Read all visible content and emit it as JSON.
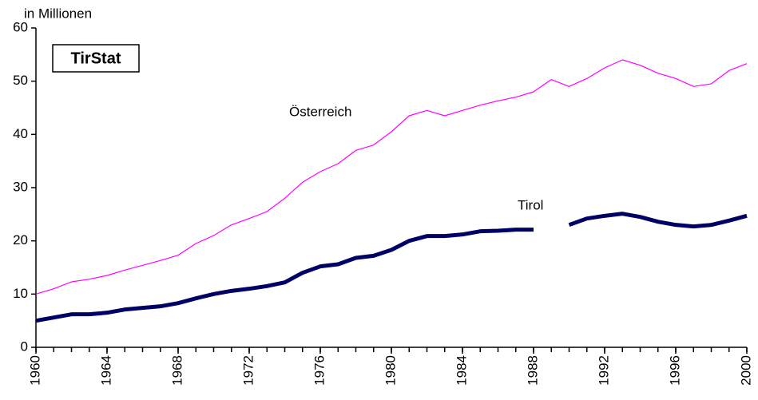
{
  "chart_data": {
    "type": "line",
    "y_unit": "in Millionen",
    "badge": "TirStat",
    "x": [
      1960,
      1961,
      1962,
      1963,
      1964,
      1965,
      1966,
      1967,
      1968,
      1969,
      1970,
      1971,
      1972,
      1973,
      1974,
      1975,
      1976,
      1977,
      1978,
      1979,
      1980,
      1981,
      1982,
      1983,
      1984,
      1985,
      1986,
      1987,
      1988,
      1989,
      1990,
      1991,
      1992,
      1993,
      1994,
      1995,
      1996,
      1997,
      1998,
      1999,
      2000
    ],
    "series": [
      {
        "name": "Österreich",
        "color": "#ff00ff",
        "width": 1.2,
        "values": [
          10,
          11,
          12.3,
          12.8,
          13.5,
          14.5,
          15.4,
          16.3,
          17.3,
          19.5,
          21,
          23,
          24.2,
          25.5,
          28,
          31,
          33,
          34.5,
          37,
          38,
          40.5,
          43.5,
          44.5,
          43.5,
          44.5,
          45.5,
          46.3,
          47,
          48,
          50.3,
          49,
          50.5,
          52.5,
          54,
          53,
          51.5,
          50.5,
          49,
          49.5,
          52,
          53.3
        ]
      },
      {
        "name": "Tirol",
        "color": "#000066",
        "width": 5,
        "values": [
          5,
          5.6,
          6.2,
          6.2,
          6.5,
          7.1,
          7.4,
          7.7,
          8.3,
          9.2,
          10,
          10.6,
          11,
          11.5,
          12.2,
          14,
          15.2,
          15.6,
          16.8,
          17.2,
          18.3,
          20,
          20.9,
          20.9,
          21.2,
          21.8,
          21.9,
          22.1,
          22.1,
          null,
          23,
          24.2,
          24.7,
          25.1,
          24.5,
          23.6,
          23,
          22.7,
          23,
          23.8,
          24.7
        ]
      }
    ],
    "xlim": [
      1960,
      2000
    ],
    "xticks": [
      1960,
      1964,
      1968,
      1972,
      1976,
      1980,
      1984,
      1988,
      1992,
      1996,
      2000
    ],
    "ylim": [
      0,
      60
    ],
    "yticks": [
      0,
      10,
      20,
      30,
      40,
      50,
      60
    ],
    "grid": false
  }
}
